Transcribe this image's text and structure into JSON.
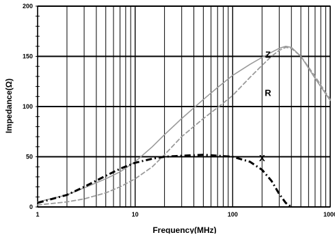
{
  "chart_data": {
    "type": "line",
    "title": "",
    "xlabel": "Frequency(MHz)",
    "ylabel": "Impedance(Ω)",
    "x_scale": "log",
    "xlim": [
      1,
      1000
    ],
    "ylim": [
      0,
      200
    ],
    "x_ticks": [
      1,
      10,
      100,
      1000
    ],
    "x_tick_labels": [
      "1",
      "10",
      "100",
      "1000"
    ],
    "y_ticks": [
      0,
      50,
      100,
      150,
      200
    ],
    "y_tick_labels": [
      "0",
      "50",
      "100",
      "150",
      "200"
    ],
    "grid": true,
    "legend": "none",
    "series": [
      {
        "name": "Z",
        "style": "solid",
        "color": "#9a9a9a",
        "x": [
          1,
          2,
          3,
          5,
          7,
          10,
          15,
          20,
          30,
          50,
          70,
          100,
          150,
          200,
          250,
          300,
          350,
          400,
          500,
          700,
          1000
        ],
        "y": [
          5,
          12,
          19,
          28,
          35,
          45,
          60,
          72,
          88,
          107,
          119,
          131,
          142,
          149,
          154,
          158,
          160,
          159,
          150,
          128,
          106
        ]
      },
      {
        "name": "R",
        "style": "dashed",
        "color": "#9a9a9a",
        "x": [
          1,
          2,
          3,
          5,
          7,
          10,
          15,
          20,
          30,
          50,
          70,
          100,
          150,
          200,
          250,
          300,
          350,
          400,
          500,
          700,
          1000
        ],
        "y": [
          2,
          5,
          8,
          14,
          20,
          28,
          40,
          52,
          70,
          88,
          99,
          111,
          129,
          141,
          150,
          156,
          159,
          158,
          150,
          130,
          107
        ]
      },
      {
        "name": "X",
        "style": "dashdot",
        "color": "#000000",
        "x": [
          1,
          2,
          3,
          5,
          7,
          10,
          15,
          20,
          30,
          50,
          70,
          100,
          150,
          200,
          250,
          300,
          350,
          400
        ],
        "y": [
          4,
          12,
          20,
          31,
          38,
          44,
          48,
          50,
          51,
          52,
          51,
          50,
          45,
          37,
          26,
          13,
          4,
          0
        ]
      }
    ],
    "annotations": [
      {
        "text": "Z",
        "x": 230,
        "y": 152
      },
      {
        "text": "R",
        "x": 230,
        "y": 114
      },
      {
        "text": "X",
        "x": 200,
        "y": 49
      }
    ]
  }
}
